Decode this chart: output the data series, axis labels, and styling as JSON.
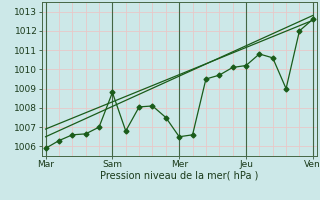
{
  "title": "",
  "xlabel": "Pression niveau de la mer( hPa )",
  "ylabel": "",
  "bg_color": "#cce8e8",
  "grid_color": "#e8c8c8",
  "line_color": "#1a5c1a",
  "ylim": [
    1005.5,
    1013.5
  ],
  "xlim": [
    -0.3,
    20.3
  ],
  "xtick_labels": [
    "Mar",
    "Sam",
    "Mer",
    "Jeu",
    "Ven"
  ],
  "xtick_positions": [
    0,
    5,
    10,
    15,
    20
  ],
  "ytick_values": [
    1006,
    1007,
    1008,
    1009,
    1010,
    1011,
    1012,
    1013
  ],
  "main_series_x": [
    0,
    1,
    2,
    3,
    4,
    5,
    6,
    7,
    8,
    9,
    10,
    11,
    12,
    13,
    14,
    15,
    16,
    17,
    18,
    19,
    20
  ],
  "main_series_y": [
    1005.9,
    1006.3,
    1006.6,
    1006.65,
    1007.0,
    1008.8,
    1006.8,
    1008.05,
    1008.1,
    1007.5,
    1006.5,
    1006.6,
    1009.5,
    1009.7,
    1010.1,
    1010.2,
    1010.8,
    1010.6,
    1009.0,
    1012.0,
    1012.6
  ],
  "trend_line1_x": [
    0,
    20
  ],
  "trend_line1_y": [
    1006.5,
    1012.8
  ],
  "trend_line2_x": [
    0,
    20
  ],
  "trend_line2_y": [
    1006.9,
    1012.55
  ],
  "dark_xlines_x": [
    0,
    5,
    10,
    15,
    20
  ],
  "dark_xlines_color": "#446644",
  "spine_color": "#446644"
}
